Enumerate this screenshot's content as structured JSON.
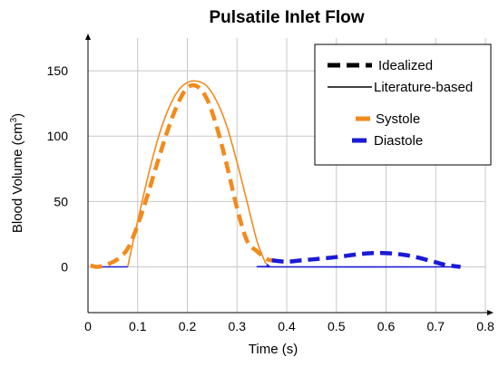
{
  "chart_data": {
    "type": "line",
    "title": "Pulsatile Inlet Flow",
    "xlabel": "Time (s)",
    "ylabel_main": "Blood Volume (cm",
    "ylabel_sup": "3",
    "ylabel_close": ")",
    "xlim": [
      0,
      0.8
    ],
    "ylim": [
      -35,
      175
    ],
    "xticks": [
      {
        "v": 0,
        "label": "0"
      },
      {
        "v": 0.1,
        "label": "0.1"
      },
      {
        "v": 0.2,
        "label": "0.2"
      },
      {
        "v": 0.3,
        "label": "0.3"
      },
      {
        "v": 0.4,
        "label": "0.4"
      },
      {
        "v": 0.5,
        "label": "0.5"
      },
      {
        "v": 0.6,
        "label": "0.6"
      },
      {
        "v": 0.7,
        "label": "0.7"
      },
      {
        "v": 0.8,
        "label": "0.8"
      }
    ],
    "yticks": [
      {
        "v": 0,
        "label": "0"
      },
      {
        "v": 50,
        "label": "50"
      },
      {
        "v": 100,
        "label": "100"
      },
      {
        "v": 150,
        "label": "150"
      }
    ],
    "grid": true,
    "legend": {
      "placement": "top-right",
      "items": [
        {
          "label": "Idealized",
          "style": "dashed",
          "color": "#000000"
        },
        {
          "label": "Literature-based",
          "style": "solid",
          "color": "#000000"
        },
        {
          "label": "Systole",
          "style": "color",
          "color": "#f28a1c"
        },
        {
          "label": "Diastole",
          "style": "color",
          "color": "#1a1ad6"
        }
      ]
    },
    "series": [
      {
        "style": "solid",
        "color": "#f28a1c",
        "x": [
          0.08,
          0.09,
          0.1,
          0.12,
          0.14,
          0.16,
          0.18,
          0.2,
          0.22,
          0.24,
          0.26,
          0.28,
          0.3,
          0.32,
          0.34,
          0.355,
          0.36
        ],
        "y": [
          0,
          18,
          35,
          68,
          97,
          119,
          134,
          141,
          142,
          138,
          126,
          107,
          80,
          50,
          20,
          5,
          2
        ]
      },
      {
        "style": "solid",
        "color": "#1a1ad6",
        "x": [
          0.005,
          0.08
        ],
        "y": [
          0,
          0
        ]
      },
      {
        "style": "solid",
        "color": "#1a1ad6",
        "x": [
          0.36,
          0.365,
          0.37,
          0.75
        ],
        "y": [
          2,
          0.5,
          0,
          0
        ]
      },
      {
        "style": "dashed",
        "color": "#f28a1c",
        "x": [
          0.005,
          0.02,
          0.04,
          0.06,
          0.08,
          0.1,
          0.12,
          0.14,
          0.16,
          0.18,
          0.2,
          0.22,
          0.24,
          0.26,
          0.28,
          0.3,
          0.32,
          0.34,
          0.36,
          0.37
        ],
        "y": [
          1,
          0,
          2,
          6,
          14,
          32,
          55,
          80,
          104,
          124,
          137,
          138,
          128,
          106,
          77,
          45,
          20,
          12,
          6,
          5
        ]
      },
      {
        "style": "dashed",
        "color": "#1a1ad6",
        "x": [
          0.37,
          0.4,
          0.43,
          0.46,
          0.5,
          0.54,
          0.57,
          0.6,
          0.63,
          0.66,
          0.7,
          0.72,
          0.75
        ],
        "y": [
          5,
          4,
          5,
          6,
          7.5,
          9.5,
          10.5,
          10.5,
          9.5,
          7.5,
          3.5,
          1.5,
          0
        ]
      }
    ]
  }
}
